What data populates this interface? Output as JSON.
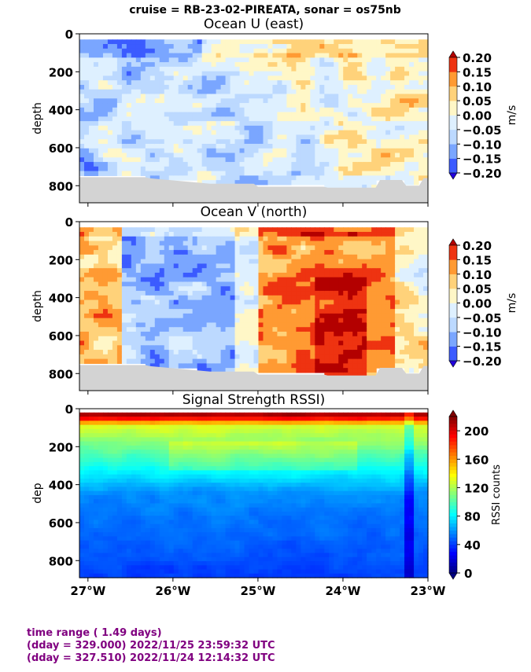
{
  "suptitle": "cruise = RB-23-02-PIREATA,  sonar = os75nb",
  "chart_data": [
    {
      "type": "heatmap",
      "title": "Ocean U (east)",
      "ylabel": "depth",
      "ylim": [
        890,
        0
      ],
      "yticks": [
        "0",
        "200",
        "400",
        "600",
        "800"
      ],
      "xlim": [
        -27.1,
        -23.0
      ],
      "colorbar": {
        "label": "m/s",
        "range": [
          -0.2,
          0.2
        ],
        "ticks": [
          "0.20",
          "0.15",
          "0.10",
          "0.05",
          "0.00",
          "−0.05",
          "−0.10",
          "−0.15",
          "−0.20"
        ],
        "colors": [
          "#2200dd",
          "#3b5bff",
          "#7aa6ff",
          "#bcd9ff",
          "#def0ff",
          "#fff7c7",
          "#ffd27a",
          "#ff9a33",
          "#ee3311",
          "#b30000"
        ]
      },
      "pattern": "u"
    },
    {
      "type": "heatmap",
      "title": "Ocean V (north)",
      "ylabel": "depth",
      "ylim": [
        890,
        0
      ],
      "yticks": [
        "0",
        "200",
        "400",
        "600",
        "800"
      ],
      "xlim": [
        -27.1,
        -23.0
      ],
      "colorbar": {
        "label": "m/s",
        "range": [
          -0.2,
          0.2
        ],
        "ticks": [
          "0.20",
          "0.15",
          "0.10",
          "0.05",
          "0.00",
          "−0.05",
          "−0.10",
          "−0.15",
          "−0.20"
        ],
        "colors": [
          "#2200dd",
          "#3b5bff",
          "#7aa6ff",
          "#bcd9ff",
          "#def0ff",
          "#fff7c7",
          "#ffd27a",
          "#ff9a33",
          "#ee3311",
          "#b30000"
        ]
      },
      "pattern": "v"
    },
    {
      "type": "heatmap",
      "title": "Signal Strength RSSI)",
      "ylabel": "dep",
      "ylim": [
        890,
        0
      ],
      "yticks": [
        "0",
        "200",
        "400",
        "600",
        "800"
      ],
      "xlim": [
        -27.1,
        -23.0
      ],
      "xticks": [
        "27°W",
        "26°W",
        "25°W",
        "24°W",
        "23°W"
      ],
      "colorbar": {
        "label": "RSSI counts",
        "range": [
          0,
          220
        ],
        "ticks": [
          "200",
          "160",
          "120",
          "80",
          "40",
          "0"
        ]
      },
      "pattern": "rssi"
    }
  ],
  "footer": {
    "line1": "time range ( 1.49 days)",
    "line2": "(dday = 329.000) 2022/11/25 23:59:32 UTC",
    "line3": "(dday = 327.510) 2022/11/24 12:14:32 UTC"
  }
}
